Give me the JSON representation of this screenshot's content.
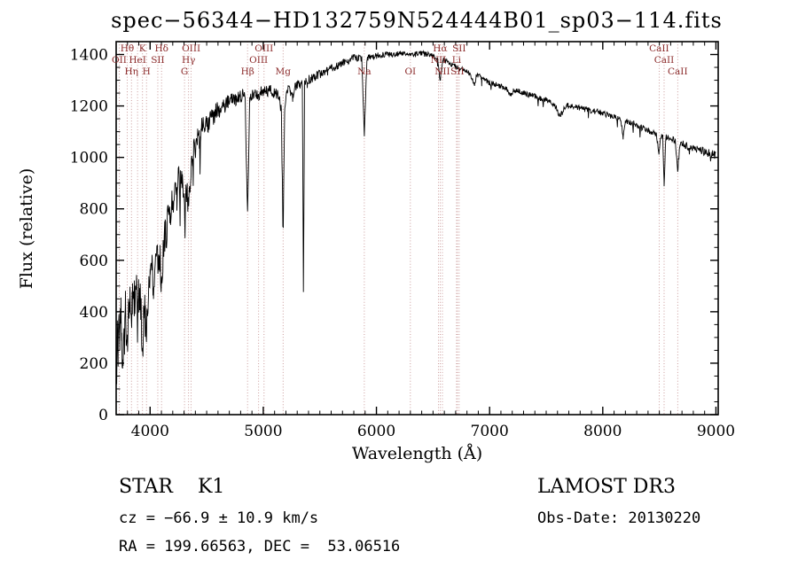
{
  "chart_data": {
    "type": "line",
    "title": "spec−56344−HD132759N524444B01_sp03−114.fits",
    "xlabel": "Wavelength (Å)",
    "ylabel": "Flux (relative)",
    "xlim": [
      3700,
      9020
    ],
    "ylim": [
      0,
      1450
    ],
    "xticks": [
      4000,
      5000,
      6000,
      7000,
      8000,
      9000
    ],
    "yticks": [
      0,
      200,
      400,
      600,
      800,
      1000,
      1200,
      1400
    ],
    "x_minor_step": 100,
    "y_minor_step": 50,
    "grid": "off",
    "legend": "none",
    "line_color": "#000000",
    "spectral_line_color": "#bd8282",
    "spectral_label_color": "#8b2a2a",
    "spectral_lines": [
      {
        "wavelength": 3727,
        "label": "OII",
        "row": 2
      },
      {
        "wavelength": 3798,
        "label": "Hθ",
        "row": 1
      },
      {
        "wavelength": 3835,
        "label": "Hη",
        "row": 3
      },
      {
        "wavelength": 3889,
        "label": "HeI",
        "row": 2
      },
      {
        "wavelength": 3933,
        "label": "K",
        "row": 1
      },
      {
        "wavelength": 3968,
        "label": "H",
        "row": 3
      },
      {
        "wavelength": 4068,
        "label": "SII",
        "row": 2
      },
      {
        "wavelength": 4101,
        "label": "Hδ",
        "row": 1
      },
      {
        "wavelength": 4304,
        "label": "G",
        "row": 3
      },
      {
        "wavelength": 4340,
        "label": "Hγ",
        "row": 2
      },
      {
        "wavelength": 4363,
        "label": "OIII",
        "row": 1
      },
      {
        "wavelength": 4861,
        "label": "Hβ",
        "row": 3
      },
      {
        "wavelength": 4959,
        "label": "OIII",
        "row": 2
      },
      {
        "wavelength": 5007,
        "label": "OIII",
        "row": 1
      },
      {
        "wavelength": 5175,
        "label": "Mg",
        "row": 3
      },
      {
        "wavelength": 5893,
        "label": "Na",
        "row": 3
      },
      {
        "wavelength": 6300,
        "label": "OI",
        "row": 3
      },
      {
        "wavelength": 6548,
        "label": "NII",
        "row": 2
      },
      {
        "wavelength": 6563,
        "label": "Hα",
        "row": 1
      },
      {
        "wavelength": 6583,
        "label": "NII",
        "row": 3
      },
      {
        "wavelength": 6708,
        "label": "Li",
        "row": 2
      },
      {
        "wavelength": 6716,
        "label": "SII",
        "row": 3
      },
      {
        "wavelength": 6731,
        "label": "SII",
        "row": 1
      },
      {
        "wavelength": 8498,
        "label": "CaII",
        "row": 1
      },
      {
        "wavelength": 8542,
        "label": "CaII",
        "row": 2
      },
      {
        "wavelength": 8662,
        "label": "CaII",
        "row": 3
      }
    ],
    "spectrum_anchors": [
      [
        3705,
        130
      ],
      [
        3710,
        430
      ],
      [
        3718,
        240
      ],
      [
        3726,
        360
      ],
      [
        3734,
        300
      ],
      [
        3742,
        420
      ],
      [
        3750,
        250
      ],
      [
        3758,
        200
      ],
      [
        3766,
        370
      ],
      [
        3774,
        310
      ],
      [
        3782,
        400
      ],
      [
        3790,
        340
      ],
      [
        3798,
        270
      ],
      [
        3806,
        420
      ],
      [
        3814,
        390
      ],
      [
        3822,
        430
      ],
      [
        3835,
        300
      ],
      [
        3843,
        450
      ],
      [
        3851,
        410
      ],
      [
        3860,
        450
      ],
      [
        3870,
        430
      ],
      [
        3880,
        490
      ],
      [
        3889,
        330
      ],
      [
        3898,
        460
      ],
      [
        3908,
        480
      ],
      [
        3918,
        440
      ],
      [
        3933,
        220
      ],
      [
        3942,
        400
      ],
      [
        3950,
        430
      ],
      [
        3958,
        370
      ],
      [
        3968,
        250
      ],
      [
        3978,
        450
      ],
      [
        3988,
        500
      ],
      [
        4000,
        520
      ],
      [
        4015,
        560
      ],
      [
        4030,
        520
      ],
      [
        4045,
        580
      ],
      [
        4060,
        620
      ],
      [
        4075,
        570
      ],
      [
        4088,
        640
      ],
      [
        4101,
        470
      ],
      [
        4115,
        640
      ],
      [
        4130,
        700
      ],
      [
        4145,
        680
      ],
      [
        4160,
        820
      ],
      [
        4175,
        750
      ],
      [
        4190,
        850
      ],
      [
        4205,
        800
      ],
      [
        4220,
        860
      ],
      [
        4235,
        830
      ],
      [
        4250,
        920
      ],
      [
        4265,
        880
      ],
      [
        4280,
        940
      ],
      [
        4292,
        860
      ],
      [
        4304,
        790
      ],
      [
        4316,
        880
      ],
      [
        4328,
        850
      ],
      [
        4340,
        800
      ],
      [
        4352,
        900
      ],
      [
        4363,
        950
      ],
      [
        4375,
        1010
      ],
      [
        4390,
        1060
      ],
      [
        4405,
        1030
      ],
      [
        4420,
        1090
      ],
      [
        4435,
        1060
      ],
      [
        4450,
        1110
      ],
      [
        4465,
        1130
      ],
      [
        4480,
        1100
      ],
      [
        4500,
        1140
      ],
      [
        4520,
        1120
      ],
      [
        4540,
        1160
      ],
      [
        4560,
        1150
      ],
      [
        4580,
        1180
      ],
      [
        4600,
        1190
      ],
      [
        4620,
        1180
      ],
      [
        4640,
        1210
      ],
      [
        4660,
        1200
      ],
      [
        4680,
        1220
      ],
      [
        4700,
        1215
      ],
      [
        4720,
        1225
      ],
      [
        4740,
        1230
      ],
      [
        4760,
        1225
      ],
      [
        4780,
        1235
      ],
      [
        4800,
        1240
      ],
      [
        4820,
        1245
      ],
      [
        4840,
        1235
      ],
      [
        4861,
        770
      ],
      [
        4880,
        1230
      ],
      [
        4900,
        1245
      ],
      [
        4920,
        1235
      ],
      [
        4940,
        1250
      ],
      [
        4960,
        1245
      ],
      [
        4980,
        1255
      ],
      [
        5000,
        1255
      ],
      [
        5020,
        1260
      ],
      [
        5040,
        1255
      ],
      [
        5060,
        1265
      ],
      [
        5080,
        1255
      ],
      [
        5100,
        1250
      ],
      [
        5120,
        1245
      ],
      [
        5140,
        1235
      ],
      [
        5160,
        1180
      ],
      [
        5175,
        730
      ],
      [
        5190,
        1200
      ],
      [
        5205,
        1255
      ],
      [
        5220,
        1265
      ],
      [
        5240,
        1250
      ],
      [
        5260,
        1230
      ],
      [
        5280,
        1270
      ],
      [
        5300,
        1285
      ],
      [
        5320,
        1280
      ],
      [
        5345,
        1285
      ],
      [
        5355,
        470
      ],
      [
        5365,
        1290
      ],
      [
        5390,
        1300
      ],
      [
        5420,
        1305
      ],
      [
        5450,
        1315
      ],
      [
        5480,
        1320
      ],
      [
        5510,
        1325
      ],
      [
        5540,
        1330
      ],
      [
        5570,
        1335
      ],
      [
        5600,
        1345
      ],
      [
        5630,
        1350
      ],
      [
        5660,
        1355
      ],
      [
        5690,
        1365
      ],
      [
        5720,
        1370
      ],
      [
        5750,
        1375
      ],
      [
        5780,
        1385
      ],
      [
        5810,
        1388
      ],
      [
        5840,
        1385
      ],
      [
        5870,
        1380
      ],
      [
        5893,
        1085
      ],
      [
        5916,
        1382
      ],
      [
        5940,
        1388
      ],
      [
        5970,
        1390
      ],
      [
        6000,
        1395
      ],
      [
        6030,
        1398
      ],
      [
        6060,
        1400
      ],
      [
        6090,
        1402
      ],
      [
        6120,
        1400
      ],
      [
        6150,
        1403
      ],
      [
        6180,
        1400
      ],
      [
        6210,
        1405
      ],
      [
        6240,
        1402
      ],
      [
        6270,
        1398
      ],
      [
        6300,
        1395
      ],
      [
        6330,
        1400
      ],
      [
        6360,
        1402
      ],
      [
        6390,
        1405
      ],
      [
        6420,
        1402
      ],
      [
        6450,
        1400
      ],
      [
        6480,
        1396
      ],
      [
        6510,
        1392
      ],
      [
        6540,
        1386
      ],
      [
        6563,
        1300
      ],
      [
        6586,
        1380
      ],
      [
        6610,
        1375
      ],
      [
        6640,
        1368
      ],
      [
        6670,
        1360
      ],
      [
        6700,
        1354
      ],
      [
        6730,
        1348
      ],
      [
        6760,
        1342
      ],
      [
        6790,
        1334
      ],
      [
        6820,
        1326
      ],
      [
        6850,
        1300
      ],
      [
        6867,
        1280
      ],
      [
        6884,
        1315
      ],
      [
        6900,
        1320
      ],
      [
        6930,
        1312
      ],
      [
        6960,
        1300
      ],
      [
        7000,
        1290
      ],
      [
        7050,
        1283
      ],
      [
        7100,
        1276
      ],
      [
        7150,
        1268
      ],
      [
        7190,
        1240
      ],
      [
        7210,
        1262
      ],
      [
        7260,
        1256
      ],
      [
        7310,
        1250
      ],
      [
        7360,
        1243
      ],
      [
        7410,
        1236
      ],
      [
        7460,
        1228
      ],
      [
        7500,
        1222
      ],
      [
        7550,
        1210
      ],
      [
        7590,
        1190
      ],
      [
        7620,
        1160
      ],
      [
        7650,
        1180
      ],
      [
        7680,
        1205
      ],
      [
        7720,
        1200
      ],
      [
        7760,
        1196
      ],
      [
        7800,
        1192
      ],
      [
        7840,
        1188
      ],
      [
        7880,
        1184
      ],
      [
        7920,
        1180
      ],
      [
        7960,
        1176
      ],
      [
        8000,
        1172
      ],
      [
        8040,
        1166
      ],
      [
        8080,
        1160
      ],
      [
        8120,
        1154
      ],
      [
        8160,
        1148
      ],
      [
        8180,
        1075
      ],
      [
        8200,
        1142
      ],
      [
        8240,
        1136
      ],
      [
        8280,
        1130
      ],
      [
        8320,
        1122
      ],
      [
        8360,
        1114
      ],
      [
        8400,
        1106
      ],
      [
        8440,
        1098
      ],
      [
        8470,
        1092
      ],
      [
        8498,
        1020
      ],
      [
        8515,
        1088
      ],
      [
        8530,
        1084
      ],
      [
        8542,
        885
      ],
      [
        8556,
        1080
      ],
      [
        8580,
        1076
      ],
      [
        8610,
        1070
      ],
      [
        8640,
        1064
      ],
      [
        8662,
        950
      ],
      [
        8684,
        1058
      ],
      [
        8710,
        1052
      ],
      [
        8740,
        1046
      ],
      [
        8780,
        1040
      ],
      [
        8820,
        1034
      ],
      [
        8860,
        1028
      ],
      [
        8900,
        1022
      ],
      [
        8940,
        1016
      ],
      [
        8970,
        1012
      ],
      [
        9000,
        1008
      ]
    ],
    "noise_envelope": [
      [
        3700,
        85
      ],
      [
        3850,
        80
      ],
      [
        4000,
        75
      ],
      [
        4150,
        65
      ],
      [
        4300,
        55
      ],
      [
        4450,
        42
      ],
      [
        4600,
        32
      ],
      [
        4800,
        26
      ],
      [
        5000,
        22
      ],
      [
        5200,
        20
      ],
      [
        5400,
        18
      ],
      [
        5600,
        16
      ],
      [
        5800,
        14
      ],
      [
        6000,
        12
      ],
      [
        6300,
        11
      ],
      [
        6600,
        10
      ],
      [
        7000,
        10
      ],
      [
        7400,
        11
      ],
      [
        7800,
        11
      ],
      [
        8200,
        12
      ],
      [
        8600,
        13
      ],
      [
        9000,
        16
      ]
    ]
  },
  "annotations": {
    "object_class": "STAR    K1",
    "survey": "LAMOST DR3",
    "cz": "cz = −66.9 ± 10.9 km/s",
    "obs_date": "Obs-Date: 20130220",
    "coords": "RA = 199.66563, DEC =  53.06516"
  }
}
